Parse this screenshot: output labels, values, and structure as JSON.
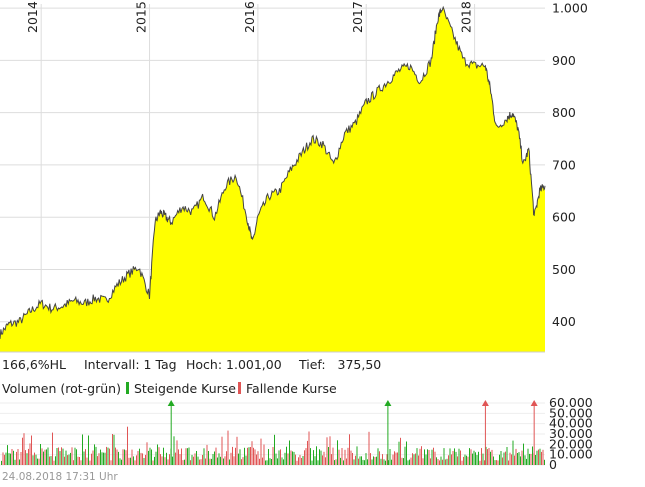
{
  "colors": {
    "fill": "#ffff00",
    "line": "#444444",
    "grid": "#dddddd",
    "rising": "#22aa22",
    "falling": "#e05555"
  },
  "chart_data": [
    {
      "type": "area",
      "x_axis": {
        "ticks": [
          "2014",
          "2015",
          "2016",
          "2017",
          "2018"
        ],
        "tick_positions": [
          2014,
          2015,
          2016,
          2017,
          2018
        ],
        "position": "top",
        "label_rotation": -90
      },
      "y_axis": {
        "ticks": [
          "400",
          "500",
          "600",
          "700",
          "800",
          "900",
          "1.000"
        ],
        "tick_values": [
          400,
          500,
          600,
          700,
          800,
          900,
          1000
        ],
        "position": "right"
      },
      "x_range": [
        2013.62,
        2018.65
      ],
      "ylim": [
        342,
        1008
      ],
      "grid": true,
      "legend": "none",
      "series": [
        {
          "x": [
            2013.62,
            2013.7,
            2013.8,
            2013.9,
            2014.0,
            2014.1,
            2014.2,
            2014.3,
            2014.4,
            2014.5,
            2014.6,
            2014.7,
            2014.8,
            2014.9,
            2015.0,
            2015.05,
            2015.1,
            2015.15,
            2015.2,
            2015.3,
            2015.4,
            2015.5,
            2015.6,
            2015.7,
            2015.8,
            2015.9,
            2015.95,
            2016.0,
            2016.1,
            2016.2,
            2016.3,
            2016.4,
            2016.5,
            2016.6,
            2016.7,
            2016.8,
            2016.9,
            2017.0,
            2017.1,
            2017.2,
            2017.3,
            2017.4,
            2017.5,
            2017.6,
            2017.66,
            2017.7,
            2017.8,
            2017.9,
            2018.0,
            2018.1,
            2018.15,
            2018.2,
            2018.3,
            2018.35,
            2018.4,
            2018.45,
            2018.5,
            2018.55,
            2018.6,
            2018.65
          ],
          "values": [
            376,
            395,
            400,
            420,
            435,
            425,
            430,
            440,
            435,
            445,
            440,
            470,
            490,
            505,
            450,
            590,
            610,
            600,
            590,
            620,
            610,
            640,
            600,
            660,
            680,
            600,
            550,
            600,
            640,
            650,
            690,
            720,
            750,
            740,
            700,
            760,
            780,
            820,
            840,
            860,
            880,
            890,
            860,
            900,
            980,
            1000,
            950,
            900,
            890,
            890,
            840,
            770,
            790,
            800,
            770,
            700,
            730,
            600,
            650,
            660
          ]
        }
      ]
    },
    {
      "type": "bar",
      "title": "Volumen (rot-grün)",
      "y_axis": {
        "ticks": [
          "0",
          "10.000",
          "20.000",
          "30.000",
          "40.000",
          "50.000",
          "60.000"
        ],
        "tick_values": [
          0,
          10000,
          20000,
          30000,
          40000,
          50000,
          60000
        ],
        "position": "right"
      },
      "ylim": [
        0,
        60000
      ],
      "x_range": [
        2013.62,
        2018.65
      ],
      "legend_entries": [
        "Steigende Kurse",
        "Fallende Kurse"
      ],
      "peak_markers": [
        {
          "x": 2015.2,
          "direction": "up"
        },
        {
          "x": 2017.2,
          "direction": "up"
        },
        {
          "x": 2018.1,
          "direction": "down"
        },
        {
          "x": 2018.55,
          "direction": "down"
        }
      ]
    }
  ],
  "stats": {
    "hl": "166,6%HL",
    "interval": "Intervall: 1 Tag",
    "high": "Hoch: 1.001,00",
    "low": "Tief:   375,50"
  },
  "legend": {
    "title": "Volumen (rot-grün)",
    "rising": "Steigende Kurse",
    "falling": "Fallende Kurse"
  },
  "footer": {
    "timestamp": "24.08.2018 17:31 Uhr"
  }
}
